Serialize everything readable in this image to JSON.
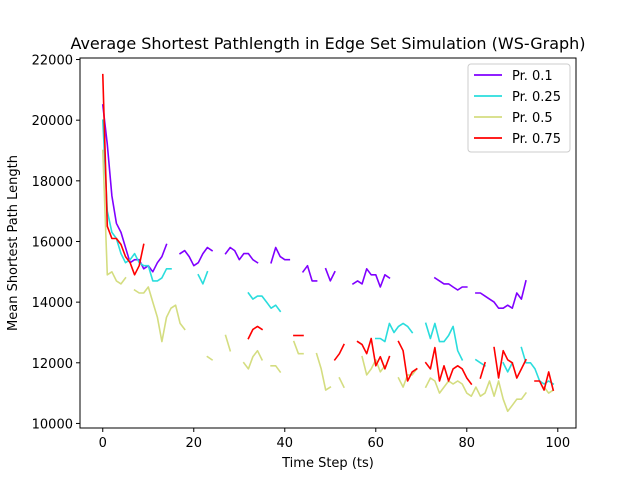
{
  "chart_data": {
    "type": "line",
    "title": "Average Shortest Pathlength in Edge Set Simulation (WS-Graph)",
    "xlabel": "Time Step (ts)",
    "ylabel": "Mean Shortest Path Length",
    "xlim": [
      -5,
      104
    ],
    "ylim": [
      9850,
      22050
    ],
    "xticks": [
      0,
      20,
      40,
      60,
      80,
      100
    ],
    "yticks": [
      10000,
      12000,
      14000,
      16000,
      18000,
      20000,
      22000
    ],
    "ytick_labels": [
      "10000",
      "12000",
      "14000",
      "16000",
      "18000",
      "20000",
      "22000"
    ],
    "legend_position": "upper right",
    "grid": false,
    "series": [
      {
        "name": "Pr. 0.1",
        "color": "#8000ff",
        "points": [
          [
            0,
            20500
          ],
          [
            1,
            19200
          ],
          [
            2,
            17500
          ],
          [
            3,
            16600
          ],
          [
            4,
            16300
          ],
          [
            5,
            15800
          ],
          [
            6,
            15300
          ],
          [
            7,
            15400
          ],
          [
            8,
            15400
          ],
          [
            9,
            15100
          ],
          [
            10,
            15200
          ],
          [
            11,
            15000
          ],
          [
            12,
            15300
          ],
          [
            13,
            15500
          ],
          [
            14,
            15900
          ],
          [
            17,
            15600
          ],
          [
            18,
            15700
          ],
          [
            19,
            15500
          ],
          [
            20,
            15200
          ],
          [
            21,
            15300
          ],
          [
            22,
            15600
          ],
          [
            23,
            15800
          ],
          [
            24,
            15700
          ],
          [
            27,
            15600
          ],
          [
            28,
            15800
          ],
          [
            29,
            15700
          ],
          [
            30,
            15400
          ],
          [
            31,
            15600
          ],
          [
            32,
            15600
          ],
          [
            33,
            15400
          ],
          [
            34,
            15300
          ],
          [
            37,
            15300
          ],
          [
            38,
            15800
          ],
          [
            39,
            15500
          ],
          [
            40,
            15400
          ],
          [
            41,
            15400
          ],
          [
            44,
            15000
          ],
          [
            45,
            15200
          ],
          [
            46,
            14700
          ],
          [
            47,
            14700
          ],
          [
            49,
            15100
          ],
          [
            50,
            14700
          ],
          [
            51,
            15000
          ],
          [
            55,
            14600
          ],
          [
            56,
            14700
          ],
          [
            57,
            14600
          ],
          [
            58,
            15100
          ],
          [
            59,
            14900
          ],
          [
            60,
            14900
          ],
          [
            61,
            14500
          ],
          [
            62,
            14900
          ],
          [
            63,
            14800
          ],
          [
            73,
            14800
          ],
          [
            74,
            14700
          ],
          [
            75,
            14600
          ],
          [
            76,
            14600
          ],
          [
            77,
            14500
          ],
          [
            78,
            14400
          ],
          [
            79,
            14500
          ],
          [
            80,
            14500
          ],
          [
            82,
            14300
          ],
          [
            83,
            14300
          ],
          [
            84,
            14200
          ],
          [
            85,
            14100
          ],
          [
            86,
            14000
          ],
          [
            87,
            13800
          ],
          [
            88,
            13800
          ],
          [
            89,
            13900
          ],
          [
            90,
            13800
          ],
          [
            91,
            14300
          ],
          [
            92,
            14100
          ],
          [
            93,
            14700
          ]
        ]
      },
      {
        "name": "Pr. 0.25",
        "color": "#2adddd",
        "points": [
          [
            0,
            20000
          ],
          [
            1,
            17000
          ],
          [
            2,
            16300
          ],
          [
            3,
            16100
          ],
          [
            4,
            15600
          ],
          [
            5,
            15300
          ],
          [
            6,
            15400
          ],
          [
            7,
            15600
          ],
          [
            8,
            15300
          ],
          [
            9,
            15200
          ],
          [
            10,
            15200
          ],
          [
            11,
            14700
          ],
          [
            12,
            14700
          ],
          [
            13,
            14800
          ],
          [
            14,
            15100
          ],
          [
            15,
            15100
          ],
          [
            21,
            14900
          ],
          [
            22,
            14600
          ],
          [
            23,
            15000
          ],
          [
            32,
            14300
          ],
          [
            33,
            14100
          ],
          [
            34,
            14200
          ],
          [
            35,
            14200
          ],
          [
            36,
            14000
          ],
          [
            37,
            13800
          ],
          [
            38,
            13900
          ],
          [
            39,
            13700
          ],
          [
            60,
            12800
          ],
          [
            61,
            12800
          ],
          [
            62,
            12700
          ],
          [
            63,
            13300
          ],
          [
            64,
            13000
          ],
          [
            65,
            13200
          ],
          [
            66,
            13300
          ],
          [
            67,
            13200
          ],
          [
            68,
            13000
          ],
          [
            71,
            13300
          ],
          [
            72,
            12800
          ],
          [
            73,
            13300
          ],
          [
            74,
            12700
          ],
          [
            75,
            12700
          ],
          [
            76,
            12900
          ],
          [
            77,
            13200
          ],
          [
            78,
            12400
          ],
          [
            79,
            12100
          ],
          [
            82,
            12100
          ],
          [
            83,
            12000
          ],
          [
            84,
            11900
          ],
          [
            88,
            12000
          ],
          [
            89,
            11700
          ],
          [
            90,
            12000
          ],
          [
            92,
            12500
          ],
          [
            93,
            12000
          ],
          [
            94,
            12000
          ],
          [
            95,
            11800
          ],
          [
            96,
            11400
          ],
          [
            97,
            11300
          ],
          [
            98,
            11400
          ],
          [
            99,
            11300
          ]
        ]
      },
      {
        "name": "Pr. 0.5",
        "color": "#d4dd80",
        "points": [
          [
            0,
            19000
          ],
          [
            1,
            14900
          ],
          [
            2,
            15000
          ],
          [
            3,
            14700
          ],
          [
            4,
            14600
          ],
          [
            5,
            14800
          ],
          [
            7,
            14400
          ],
          [
            8,
            14300
          ],
          [
            9,
            14300
          ],
          [
            10,
            14500
          ],
          [
            11,
            14000
          ],
          [
            12,
            13500
          ],
          [
            13,
            12700
          ],
          [
            14,
            13500
          ],
          [
            15,
            13800
          ],
          [
            16,
            13900
          ],
          [
            17,
            13300
          ],
          [
            18,
            13100
          ],
          [
            23,
            12200
          ],
          [
            24,
            12100
          ],
          [
            27,
            12900
          ],
          [
            28,
            12400
          ],
          [
            31,
            12000
          ],
          [
            32,
            11800
          ],
          [
            33,
            12200
          ],
          [
            34,
            12400
          ],
          [
            35,
            12100
          ],
          [
            37,
            11900
          ],
          [
            38,
            11900
          ],
          [
            39,
            11700
          ],
          [
            42,
            12700
          ],
          [
            43,
            12300
          ],
          [
            44,
            12300
          ],
          [
            47,
            12300
          ],
          [
            48,
            11800
          ],
          [
            49,
            11100
          ],
          [
            50,
            11200
          ],
          [
            52,
            11500
          ],
          [
            53,
            11200
          ],
          [
            57,
            12200
          ],
          [
            58,
            11600
          ],
          [
            59,
            11800
          ],
          [
            60,
            12100
          ],
          [
            61,
            11700
          ],
          [
            62,
            11900
          ],
          [
            65,
            11500
          ],
          [
            66,
            11200
          ],
          [
            67,
            11600
          ],
          [
            68,
            11600
          ],
          [
            69,
            11800
          ],
          [
            71,
            11200
          ],
          [
            72,
            11500
          ],
          [
            73,
            11400
          ],
          [
            74,
            11000
          ],
          [
            75,
            11200
          ],
          [
            76,
            11400
          ],
          [
            77,
            11300
          ],
          [
            78,
            11400
          ],
          [
            79,
            11300
          ],
          [
            80,
            11000
          ],
          [
            81,
            10900
          ],
          [
            82,
            11200
          ],
          [
            83,
            10900
          ],
          [
            84,
            11000
          ],
          [
            85,
            11400
          ],
          [
            86,
            10900
          ],
          [
            87,
            11400
          ],
          [
            88,
            10800
          ],
          [
            89,
            10400
          ],
          [
            90,
            10600
          ],
          [
            91,
            10800
          ],
          [
            92,
            10800
          ],
          [
            93,
            11000
          ],
          [
            97,
            11200
          ],
          [
            98,
            11000
          ],
          [
            99,
            11100
          ]
        ]
      },
      {
        "name": "Pr. 0.75",
        "color": "#ff0000",
        "points": [
          [
            0,
            21500
          ],
          [
            1,
            16500
          ],
          [
            2,
            16100
          ],
          [
            3,
            16100
          ],
          [
            4,
            15900
          ],
          [
            5,
            15500
          ],
          [
            6,
            15300
          ],
          [
            7,
            14900
          ],
          [
            8,
            15200
          ],
          [
            9,
            15900
          ],
          [
            32,
            12800
          ],
          [
            33,
            13100
          ],
          [
            34,
            13200
          ],
          [
            35,
            13100
          ],
          [
            42,
            12900
          ],
          [
            43,
            12900
          ],
          [
            44,
            12900
          ],
          [
            51,
            12100
          ],
          [
            52,
            12300
          ],
          [
            53,
            12600
          ],
          [
            56,
            12700
          ],
          [
            57,
            12600
          ],
          [
            58,
            12300
          ],
          [
            59,
            12800
          ],
          [
            60,
            11900
          ],
          [
            61,
            12200
          ],
          [
            62,
            11800
          ],
          [
            63,
            12200
          ],
          [
            65,
            12700
          ],
          [
            66,
            12400
          ],
          [
            67,
            11400
          ],
          [
            68,
            11700
          ],
          [
            69,
            11800
          ],
          [
            71,
            12000
          ],
          [
            72,
            11800
          ],
          [
            73,
            12500
          ],
          [
            74,
            11400
          ],
          [
            75,
            11900
          ],
          [
            76,
            11400
          ],
          [
            77,
            11800
          ],
          [
            78,
            11900
          ],
          [
            79,
            11800
          ],
          [
            80,
            11500
          ],
          [
            81,
            11300
          ],
          [
            83,
            11500
          ],
          [
            84,
            12000
          ],
          [
            86,
            12500
          ],
          [
            87,
            11500
          ],
          [
            88,
            12400
          ],
          [
            89,
            12100
          ],
          [
            90,
            12000
          ],
          [
            91,
            11500
          ],
          [
            92,
            11800
          ],
          [
            93,
            12100
          ],
          [
            95,
            11400
          ],
          [
            96,
            11400
          ],
          [
            97,
            11100
          ],
          [
            98,
            11700
          ],
          [
            99,
            11100
          ]
        ]
      }
    ]
  }
}
